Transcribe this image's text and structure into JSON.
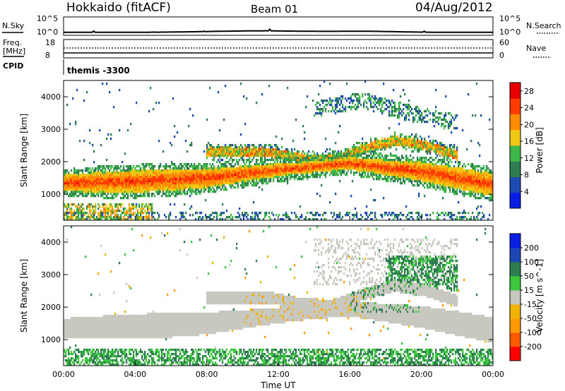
{
  "header": {
    "station": "Hokkaido (fitACF)",
    "beam": "Beam 01",
    "date": "04/Aug/2012"
  },
  "top_panels": {
    "nsky_label": "N.Sky",
    "nsearch_label": "N.Search",
    "noise_ticks": [
      "10^5",
      "10^0"
    ],
    "freq_label": "Freq.",
    "freq_unit": "[MHz]",
    "freq_ticks": [
      "18",
      "8"
    ],
    "nave_label": "Nave",
    "nave_ticks": [
      "60",
      "0"
    ],
    "cpid_label": "CPID",
    "cpid_value": "themis -3300"
  },
  "colors": {
    "power": [
      "#0a1ee6",
      "#1e4ab4",
      "#2e7d50",
      "#3fb84a",
      "#f0c814",
      "#ff8c00",
      "#ff3c00",
      "#e60000"
    ],
    "velocity": [
      "#ff0000",
      "#ff5a00",
      "#ff9a00",
      "#f0b400",
      "#c8c8c0",
      "#3cc83c",
      "#2e7d50",
      "#1e46b4",
      "#0a1ee6"
    ]
  },
  "chart_data": [
    {
      "type": "heatmap",
      "title": "",
      "xlabel": "Time UT",
      "ylabel": "Slant Range [km]",
      "x_ticks": [
        "00:00",
        "04:00",
        "08:00",
        "12:00",
        "16:00",
        "20:00",
        "00:00"
      ],
      "xlim_hours": [
        0,
        24
      ],
      "ylim": [
        200,
        4500
      ],
      "y_ticks": [
        "1000",
        "2000",
        "3000",
        "4000"
      ],
      "colorbar_label": "Power [dB]",
      "colorbar_ticks": [
        "28",
        "24",
        "20",
        "16",
        "12",
        "8",
        "4"
      ],
      "colorbar_range": [
        0,
        30
      ],
      "features": [
        {
          "name": "main echo band",
          "x_hours": [
            0,
            24
          ],
          "range_center_km": [
            1350,
            1400,
            1500,
            1750,
            1950,
            1700,
            1300
          ],
          "value_db": 26
        },
        {
          "name": "upper band",
          "x_hours": [
            8,
            22
          ],
          "range_center_km": [
            2300,
            2100,
            2050,
            2400,
            2650,
            2500,
            2200
          ],
          "value_db": 16
        },
        {
          "name": "far range scatter",
          "x_hours": [
            14,
            22
          ],
          "range_center_km": [
            3600,
            3900,
            3500,
            3200
          ],
          "value_db": 10
        }
      ]
    },
    {
      "type": "heatmap",
      "title": "",
      "xlabel": "Time UT",
      "ylabel": "Slant Range [km]",
      "x_ticks": [
        "00:00",
        "04:00",
        "08:00",
        "12:00",
        "16:00",
        "20:00",
        "00:00"
      ],
      "xlim_hours": [
        0,
        24
      ],
      "ylim": [
        200,
        4500
      ],
      "y_ticks": [
        "1000",
        "2000",
        "3000",
        "4000"
      ],
      "colorbar_label": "Velocity [m s^-1]",
      "colorbar_ticks": [
        "200",
        "100",
        "50",
        "15",
        "-15",
        "-50",
        "-100",
        "-200"
      ],
      "colorbar_range": [
        -250,
        250
      ],
      "features": [
        {
          "name": "main band",
          "x_hours": [
            0,
            24
          ],
          "value_ms": 0
        },
        {
          "name": "low range ground scatter",
          "x_hours": [
            0,
            24
          ],
          "range_km": [
            200,
            700
          ],
          "value_ms": 40
        },
        {
          "name": "noon streaks",
          "x_hours": [
            10,
            17
          ],
          "value_ms": -40
        },
        {
          "name": "evening far range",
          "x_hours": [
            18,
            22
          ],
          "range_km": [
            2500,
            3600
          ],
          "value_ms": 60
        }
      ]
    }
  ]
}
